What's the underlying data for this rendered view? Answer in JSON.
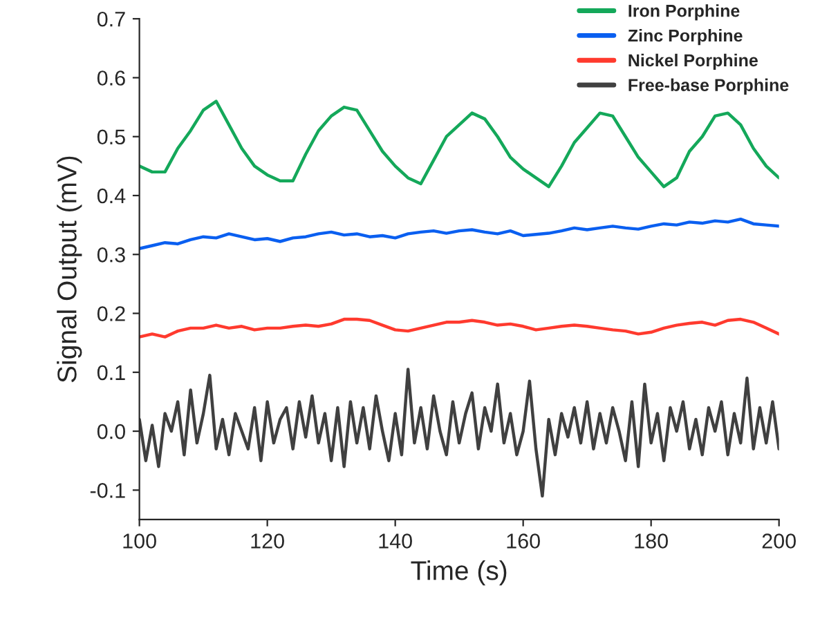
{
  "chart_data": {
    "type": "line",
    "xlabel": "Time (s)",
    "ylabel": "Signal Output (mV)",
    "xlim": [
      100,
      200
    ],
    "xticks": [
      100,
      120,
      140,
      160,
      180,
      200
    ],
    "ylim": [
      -0.15,
      0.7
    ],
    "yticks": [
      -0.1,
      {
        "value": 0,
        "label": "0.0"
      },
      0.1,
      0.2,
      0.3,
      0.4,
      0.5,
      0.6,
      0.7
    ],
    "grid": false,
    "legend": "top right",
    "line_style": "solid",
    "marker": "none",
    "x": [
      100,
      102,
      104,
      106,
      108,
      110,
      112,
      114,
      116,
      118,
      120,
      122,
      124,
      126,
      128,
      130,
      132,
      134,
      136,
      138,
      140,
      142,
      144,
      146,
      148,
      150,
      152,
      154,
      156,
      158,
      160,
      162,
      164,
      166,
      168,
      170,
      172,
      174,
      176,
      178,
      180,
      182,
      184,
      186,
      188,
      190,
      192,
      194,
      196,
      198,
      200
    ],
    "series": [
      {
        "name": "Iron Porphine",
        "color": "#14a85a",
        "values": [
          0.45,
          0.44,
          0.44,
          0.48,
          0.51,
          0.545,
          0.56,
          0.52,
          0.48,
          0.45,
          0.435,
          0.425,
          0.425,
          0.47,
          0.51,
          0.535,
          0.55,
          0.545,
          0.51,
          0.475,
          0.45,
          0.43,
          0.42,
          0.46,
          0.5,
          0.52,
          0.54,
          0.53,
          0.5,
          0.465,
          0.445,
          0.43,
          0.415,
          0.45,
          0.49,
          0.515,
          0.54,
          0.535,
          0.5,
          0.465,
          0.44,
          0.415,
          0.43,
          0.475,
          0.5,
          0.535,
          0.54,
          0.52,
          0.48,
          0.45,
          0.43
        ]
      },
      {
        "name": "Zinc Porphine",
        "color": "#0a5ff0",
        "values": [
          0.31,
          0.315,
          0.32,
          0.318,
          0.325,
          0.33,
          0.328,
          0.335,
          0.33,
          0.325,
          0.327,
          0.322,
          0.328,
          0.33,
          0.335,
          0.338,
          0.333,
          0.335,
          0.33,
          0.332,
          0.328,
          0.335,
          0.338,
          0.34,
          0.336,
          0.34,
          0.342,
          0.338,
          0.335,
          0.34,
          0.332,
          0.334,
          0.336,
          0.34,
          0.345,
          0.342,
          0.345,
          0.348,
          0.345,
          0.343,
          0.348,
          0.352,
          0.35,
          0.355,
          0.353,
          0.357,
          0.355,
          0.36,
          0.352,
          0.35,
          0.348
        ]
      },
      {
        "name": "Nickel Porphine",
        "color": "#ff3a2e",
        "values": [
          0.16,
          0.165,
          0.16,
          0.17,
          0.175,
          0.175,
          0.18,
          0.175,
          0.178,
          0.172,
          0.175,
          0.175,
          0.178,
          0.18,
          0.178,
          0.182,
          0.19,
          0.19,
          0.188,
          0.18,
          0.172,
          0.17,
          0.175,
          0.18,
          0.185,
          0.185,
          0.188,
          0.185,
          0.18,
          0.182,
          0.178,
          0.172,
          0.175,
          0.178,
          0.18,
          0.178,
          0.175,
          0.172,
          0.17,
          0.165,
          0.168,
          0.175,
          0.18,
          0.183,
          0.185,
          0.18,
          0.188,
          0.19,
          0.185,
          0.175,
          0.165
        ]
      },
      {
        "name": "Free-base Porphine",
        "color": "#404040",
        "x": [
          100,
          101,
          102,
          103,
          104,
          105,
          106,
          107,
          108,
          109,
          110,
          111,
          112,
          113,
          114,
          115,
          116,
          117,
          118,
          119,
          120,
          121,
          122,
          123,
          124,
          125,
          126,
          127,
          128,
          129,
          130,
          131,
          132,
          133,
          134,
          135,
          136,
          137,
          138,
          139,
          140,
          141,
          142,
          143,
          144,
          145,
          146,
          147,
          148,
          149,
          150,
          151,
          152,
          153,
          154,
          155,
          156,
          157,
          158,
          159,
          160,
          161,
          162,
          163,
          164,
          165,
          166,
          167,
          168,
          169,
          170,
          171,
          172,
          173,
          174,
          175,
          176,
          177,
          178,
          179,
          180,
          181,
          182,
          183,
          184,
          185,
          186,
          187,
          188,
          189,
          190,
          191,
          192,
          193,
          194,
          195,
          196,
          197,
          198,
          199,
          200
        ],
        "values": [
          0.02,
          -0.05,
          0.01,
          -0.06,
          0.03,
          0.0,
          0.05,
          -0.04,
          0.07,
          -0.02,
          0.03,
          0.095,
          -0.03,
          0.02,
          -0.04,
          0.03,
          0.0,
          -0.03,
          0.04,
          -0.05,
          0.05,
          -0.02,
          0.02,
          0.04,
          -0.03,
          0.05,
          -0.01,
          0.06,
          -0.02,
          0.03,
          -0.05,
          0.04,
          -0.06,
          0.05,
          -0.02,
          0.04,
          -0.03,
          0.06,
          0.0,
          -0.05,
          0.03,
          -0.04,
          0.105,
          -0.02,
          0.04,
          -0.03,
          0.06,
          0.0,
          -0.04,
          0.05,
          -0.02,
          0.03,
          0.065,
          -0.03,
          0.04,
          0.0,
          0.08,
          -0.02,
          0.03,
          -0.04,
          0.0,
          0.085,
          -0.03,
          -0.11,
          0.02,
          -0.04,
          0.03,
          -0.01,
          0.04,
          -0.02,
          0.05,
          -0.03,
          0.03,
          -0.02,
          0.04,
          0.0,
          -0.05,
          0.05,
          -0.06,
          0.08,
          -0.02,
          0.03,
          -0.05,
          0.04,
          0.0,
          0.05,
          -0.03,
          0.02,
          -0.04,
          0.04,
          0.0,
          0.05,
          -0.04,
          0.03,
          -0.02,
          0.09,
          -0.03,
          0.04,
          -0.02,
          0.05,
          -0.03
        ]
      }
    ]
  }
}
